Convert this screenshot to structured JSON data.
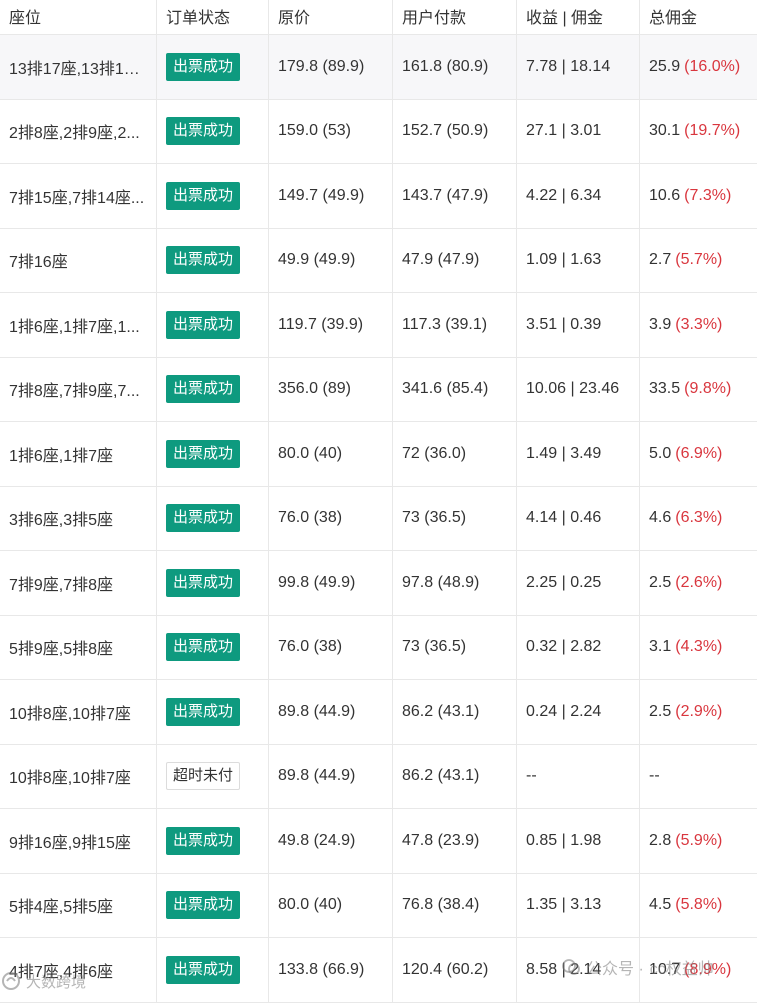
{
  "table": {
    "headers": [
      "座位",
      "订单状态",
      "原价",
      "用户付款",
      "收益 | 佣金",
      "总佣金"
    ],
    "rows": [
      {
        "seat": "13排17座,13排18...",
        "status": "出票成功",
        "status_type": "success",
        "price": "179.8 (89.9)",
        "paid": "161.8 (80.9)",
        "earn": "7.78 | 18.14",
        "total": "25.9",
        "pct": "(16.0%)"
      },
      {
        "seat": "2排8座,2排9座,2...",
        "status": "出票成功",
        "status_type": "success",
        "price": "159.0 (53)",
        "paid": "152.7 (50.9)",
        "earn": "27.1 | 3.01",
        "total": "30.1",
        "pct": "(19.7%)"
      },
      {
        "seat": "7排15座,7排14座...",
        "status": "出票成功",
        "status_type": "success",
        "price": "149.7 (49.9)",
        "paid": "143.7 (47.9)",
        "earn": "4.22 | 6.34",
        "total": "10.6",
        "pct": "(7.3%)"
      },
      {
        "seat": "7排16座",
        "status": "出票成功",
        "status_type": "success",
        "price": "49.9 (49.9)",
        "paid": "47.9 (47.9)",
        "earn": "1.09 | 1.63",
        "total": "2.7",
        "pct": "(5.7%)"
      },
      {
        "seat": "1排6座,1排7座,1...",
        "status": "出票成功",
        "status_type": "success",
        "price": "119.7 (39.9)",
        "paid": "117.3 (39.1)",
        "earn": "3.51 | 0.39",
        "total": "3.9",
        "pct": "(3.3%)"
      },
      {
        "seat": "7排8座,7排9座,7...",
        "status": "出票成功",
        "status_type": "success",
        "price": "356.0 (89)",
        "paid": "341.6 (85.4)",
        "earn": "10.06 | 23.46",
        "total": "33.5",
        "pct": "(9.8%)"
      },
      {
        "seat": "1排6座,1排7座",
        "status": "出票成功",
        "status_type": "success",
        "price": "80.0 (40)",
        "paid": "72 (36.0)",
        "earn": "1.49 | 3.49",
        "total": "5.0",
        "pct": "(6.9%)"
      },
      {
        "seat": "3排6座,3排5座",
        "status": "出票成功",
        "status_type": "success",
        "price": "76.0 (38)",
        "paid": "73 (36.5)",
        "earn": "4.14 | 0.46",
        "total": "4.6",
        "pct": "(6.3%)"
      },
      {
        "seat": "7排9座,7排8座",
        "status": "出票成功",
        "status_type": "success",
        "price": "99.8 (49.9)",
        "paid": "97.8 (48.9)",
        "earn": "2.25 | 0.25",
        "total": "2.5",
        "pct": "(2.6%)"
      },
      {
        "seat": "5排9座,5排8座",
        "status": "出票成功",
        "status_type": "success",
        "price": "76.0 (38)",
        "paid": "73 (36.5)",
        "earn": "0.32 | 2.82",
        "total": "3.1",
        "pct": "(4.3%)"
      },
      {
        "seat": "10排8座,10排7座",
        "status": "出票成功",
        "status_type": "success",
        "price": "89.8 (44.9)",
        "paid": "86.2 (43.1)",
        "earn": "0.24 | 2.24",
        "total": "2.5",
        "pct": "(2.9%)"
      },
      {
        "seat": "10排8座,10排7座",
        "status": "超时未付",
        "status_type": "timeout",
        "price": "89.8 (44.9)",
        "paid": "86.2 (43.1)",
        "earn": "--",
        "total": "--",
        "pct": ""
      },
      {
        "seat": "9排16座,9排15座",
        "status": "出票成功",
        "status_type": "success",
        "price": "49.8 (24.9)",
        "paid": "47.8 (23.9)",
        "earn": "0.85 | 1.98",
        "total": "2.8",
        "pct": "(5.9%)"
      },
      {
        "seat": "5排4座,5排5座",
        "status": "出票成功",
        "status_type": "success",
        "price": "80.0 (40)",
        "paid": "76.8 (38.4)",
        "earn": "1.35 | 3.13",
        "total": "4.5",
        "pct": "(5.8%)"
      },
      {
        "seat": "4排7座,4排6座",
        "status": "出票成功",
        "status_type": "success",
        "price": "133.8 (66.9)",
        "paid": "120.4 (60.2)",
        "earn": "8.58 | 2.14",
        "total": "10.7",
        "pct": "(8.9%)"
      }
    ]
  },
  "watermark": {
    "left": "大数跨境",
    "right_prefix": "公众号 ·",
    "right_name": "cc权益帅"
  },
  "colors": {
    "success_badge": "#0e9a7f",
    "pct_red": "#d9363e",
    "border": "#e8e8e8",
    "highlight_row": "#f7f7f9"
  }
}
